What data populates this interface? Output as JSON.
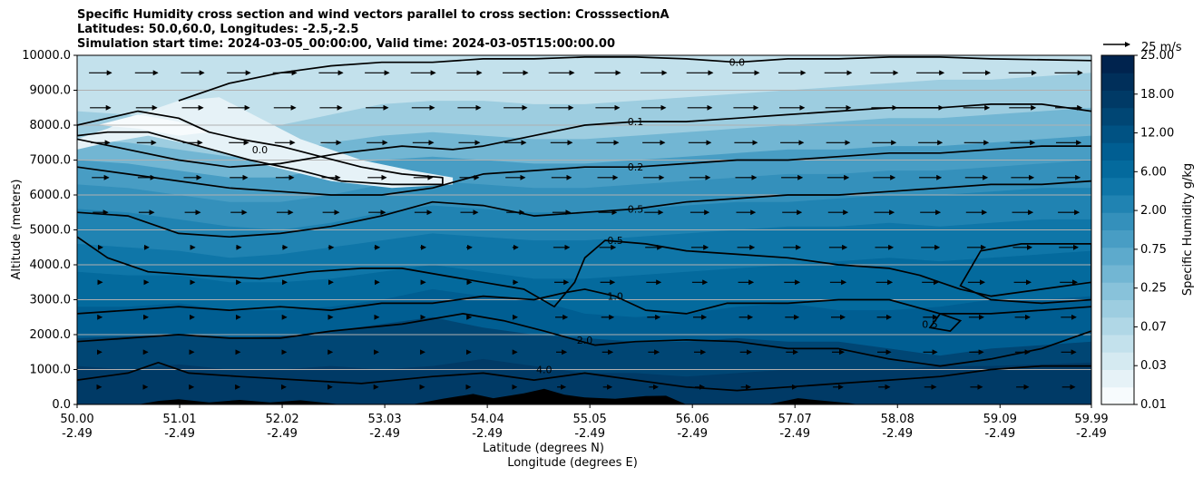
{
  "title": {
    "line1": "Specific Humidity cross section and wind vectors parallel to cross section: CrosssectionA",
    "line2": "Latitudes: 50.0,60.0, Longitudes: -2.5,-2.5",
    "line3": "Simulation start time: 2024-03-05_00:00:00, Valid time: 2024-03-05T15:00:00.00"
  },
  "chart_data": {
    "type": "heatmap",
    "xlabel_lat": "Latitude (degrees N)",
    "xlabel_lon": "Longitude (degrees E)",
    "ylabel": "Altitude (meters)",
    "xlim": [
      50.0,
      59.99
    ],
    "ylim": [
      0,
      10000
    ],
    "x_ticks": [
      {
        "lat": "50.00",
        "lon": "-2.49"
      },
      {
        "lat": "51.01",
        "lon": "-2.49"
      },
      {
        "lat": "52.02",
        "lon": "-2.49"
      },
      {
        "lat": "53.03",
        "lon": "-2.49"
      },
      {
        "lat": "54.04",
        "lon": "-2.49"
      },
      {
        "lat": "55.05",
        "lon": "-2.49"
      },
      {
        "lat": "56.06",
        "lon": "-2.49"
      },
      {
        "lat": "57.07",
        "lon": "-2.49"
      },
      {
        "lat": "58.08",
        "lon": "-2.49"
      },
      {
        "lat": "59.09",
        "lon": "-2.49"
      },
      {
        "lat": "59.99",
        "lon": "-2.49"
      }
    ],
    "y_ticks": [
      "0.0",
      "1000.0",
      "2000.0",
      "3000.0",
      "4000.0",
      "5000.0",
      "6000.0",
      "7000.0",
      "8000.0",
      "9000.0",
      "10000.0"
    ],
    "colorbar": {
      "label": "Specific Humidity g/kg",
      "tick_labels": [
        "0.01",
        "0.03",
        "0.07",
        "0.25",
        "0.75",
        "2.00",
        "6.00",
        "12.00",
        "18.00",
        "25.00"
      ],
      "levels": 20,
      "colors": [
        "#f7fbfd",
        "#e6f2f7",
        "#d5eaf1",
        "#c3e1ec",
        "#b0d7e6",
        "#9dcde0",
        "#88c2da",
        "#72b6d3",
        "#5daacc",
        "#489dc4",
        "#3490bb",
        "#2083b2",
        "#0f76a8",
        "#046a9d",
        "#005e92",
        "#005283",
        "#004674",
        "#003a66",
        "#002f5a",
        "#00234e"
      ]
    },
    "contours": [
      {
        "label": "0.0",
        "level": 0.0
      },
      {
        "label": "0.1",
        "level": 0.1
      },
      {
        "label": "0.2",
        "level": 0.2
      },
      {
        "label": "0.5",
        "level": 0.5
      },
      {
        "label": "1.0",
        "level": 1.0
      },
      {
        "label": "2.0",
        "level": 2.0
      },
      {
        "label": "4.0",
        "level": 4.0
      }
    ],
    "wind_key": {
      "label": "25 m/s",
      "speed": 25
    },
    "grid": "horizontal"
  }
}
